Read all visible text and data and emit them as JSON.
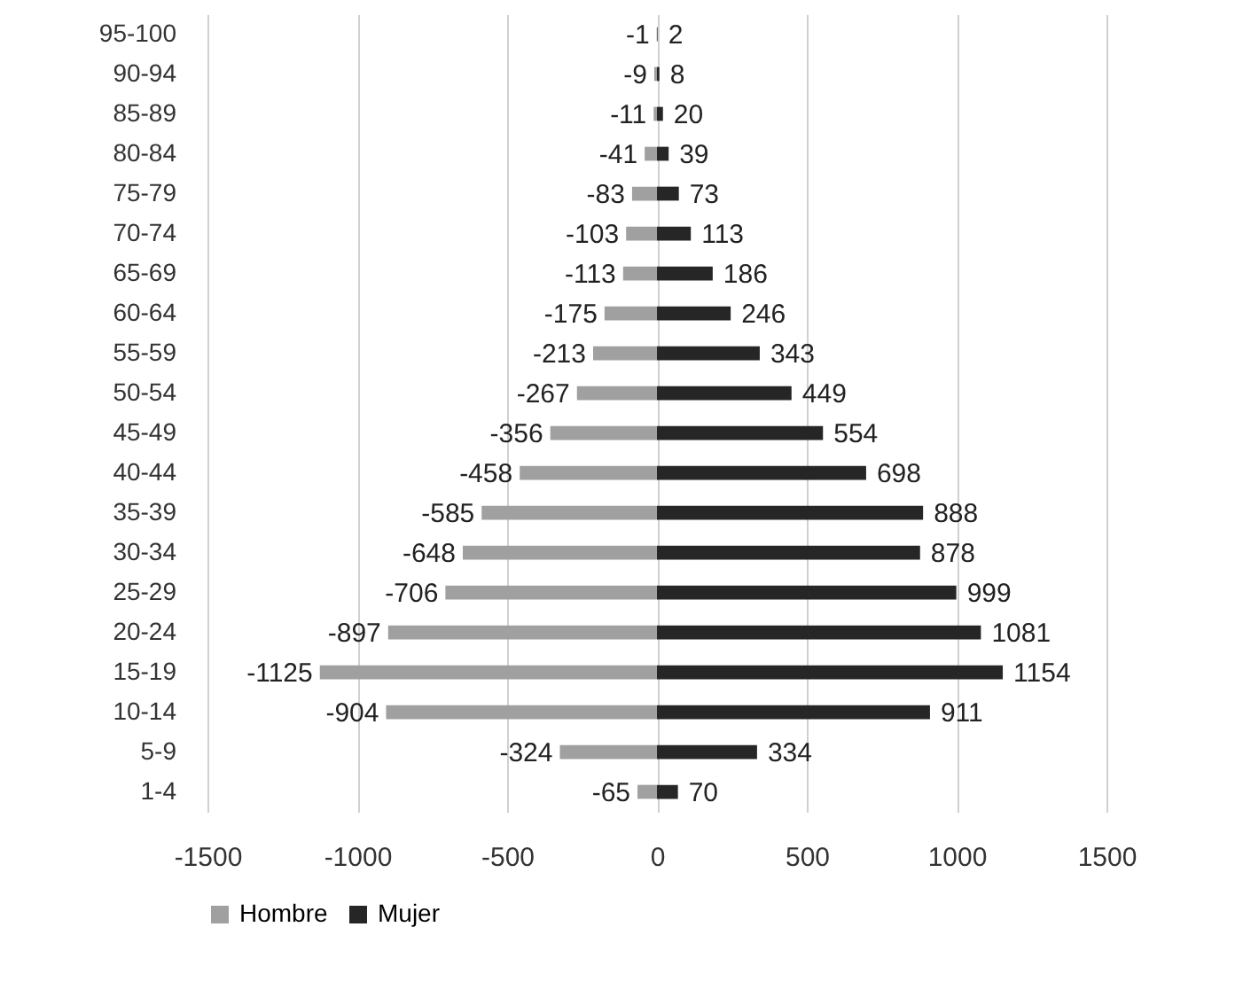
{
  "chart_data": {
    "type": "bar",
    "orientation": "horizontal",
    "stacked": true,
    "categories": [
      "95-100",
      "90-94",
      "85-89",
      "80-84",
      "75-79",
      "70-74",
      "65-69",
      "60-64",
      "55-59",
      "50-54",
      "45-49",
      "40-44",
      "35-39",
      "30-34",
      "25-29",
      "20-24",
      "15-19",
      "10-14",
      "5-9",
      "1-4"
    ],
    "series": [
      {
        "name": "Hombre",
        "color": "#a0a0a0",
        "values": [
          -1,
          -9,
          -11,
          -41,
          -83,
          -103,
          -113,
          -175,
          -213,
          -267,
          -356,
          -458,
          -585,
          -648,
          -706,
          -897,
          -1125,
          -904,
          -324,
          -65
        ]
      },
      {
        "name": "Mujer",
        "color": "#262626",
        "values": [
          2,
          8,
          20,
          39,
          73,
          113,
          186,
          246,
          343,
          449,
          554,
          698,
          888,
          878,
          999,
          1081,
          1154,
          911,
          334,
          70
        ]
      }
    ],
    "xlim": [
      -1500,
      1500
    ],
    "xticks": [
      -1500,
      -1000,
      -500,
      0,
      500,
      1000,
      1500
    ],
    "grid": "x",
    "legend": "bottom",
    "data_labels": true
  }
}
